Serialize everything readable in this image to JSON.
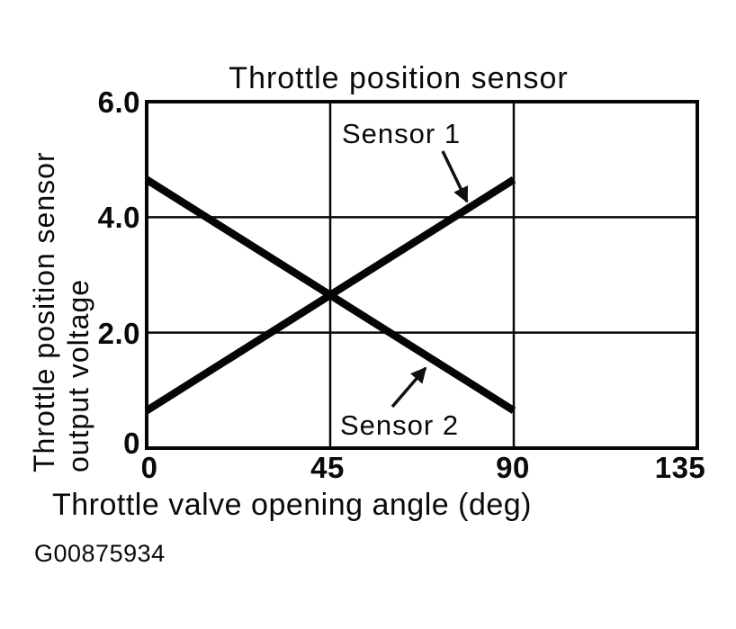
{
  "page": {
    "background": "#ffffff",
    "ink_color": "#000000",
    "figure_id": "G00875934"
  },
  "chart_data": {
    "type": "line",
    "title": "Throttle position sensor",
    "xlabel": "Throttle valve opening angle (deg)",
    "ylabel": "Throttle position sensor output voltage",
    "ylabel_line1": "Throttle position sensor",
    "ylabel_line2": "output voltage",
    "xlim": [
      0,
      135
    ],
    "ylim": [
      0,
      6
    ],
    "x_tick_labels": [
      "0",
      "45",
      "90",
      "135"
    ],
    "y_tick_labels": [
      "6.0",
      "4.0",
      "2.0",
      "0"
    ],
    "x_gridlines": [
      45,
      90
    ],
    "y_gridlines": [
      2,
      4
    ],
    "grid": true,
    "legend_position": "on-chart annotations with arrows",
    "line_color": "#000000",
    "series": [
      {
        "name": "Sensor 1",
        "x": [
          0,
          90
        ],
        "values": [
          0.65,
          4.65
        ]
      },
      {
        "name": "Sensor 2",
        "x": [
          0,
          90
        ],
        "values": [
          4.65,
          0.65
        ]
      }
    ],
    "crossing_point": {
      "x": 45,
      "value": 2.65
    }
  }
}
